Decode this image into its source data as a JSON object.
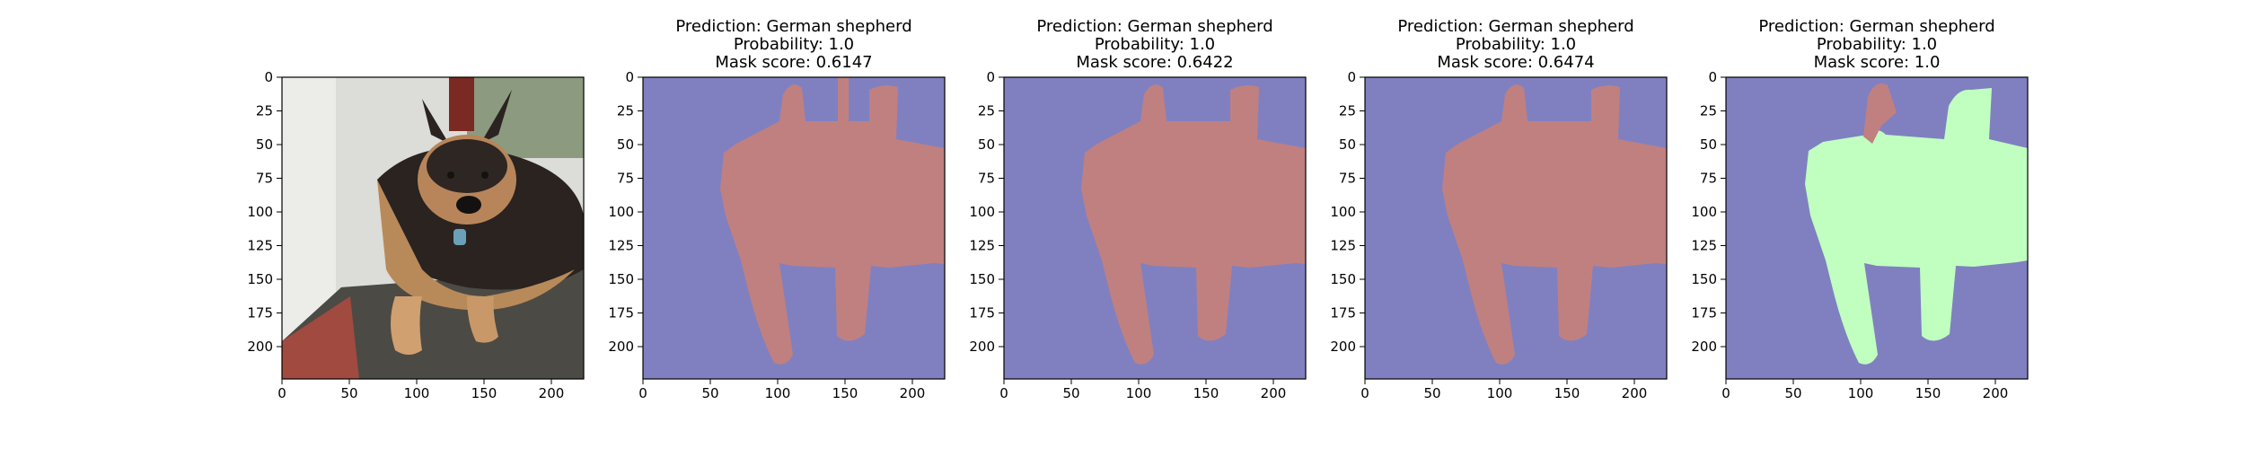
{
  "figure": {
    "panels": [
      {
        "kind": "photo",
        "subject": "german-shepherd-photo",
        "title_lines": []
      },
      {
        "kind": "mask",
        "mask_variant": "mask-1",
        "title_lines": [
          "Prediction: German shepherd",
          "Probability: 1.0",
          "Mask score: 0.6147"
        ]
      },
      {
        "kind": "mask",
        "mask_variant": "mask-2",
        "title_lines": [
          "Prediction: German shepherd",
          "Probability: 1.0",
          "Mask score: 0.6422"
        ]
      },
      {
        "kind": "mask",
        "mask_variant": "mask-3",
        "title_lines": [
          "Prediction: German shepherd",
          "Probability: 1.0",
          "Mask score: 0.6474"
        ]
      },
      {
        "kind": "mask",
        "mask_variant": "mask-4-two-tone",
        "title_lines": [
          "Prediction: German shepherd",
          "Probability: 1.0",
          "Mask score: 1.0"
        ]
      }
    ],
    "axes": {
      "x_ticks": [
        "0",
        "50",
        "100",
        "150",
        "200"
      ],
      "y_ticks": [
        "0",
        "25",
        "50",
        "75",
        "100",
        "125",
        "150",
        "175",
        "200"
      ],
      "range": [
        0,
        224
      ]
    },
    "colors": {
      "background_mask": "#8080c0",
      "foreground_mask": "#c08080",
      "highlight_mask": "#c0ffc0",
      "axis": "#000000"
    }
  }
}
